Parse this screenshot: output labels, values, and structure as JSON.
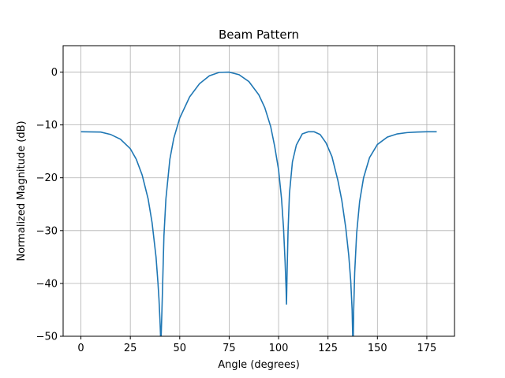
{
  "chart_data": {
    "type": "line",
    "title": "Beam Pattern",
    "xlabel": "Angle (degrees)",
    "ylabel": "Normalized Magnitude (dB)",
    "xlim": [
      -9,
      189
    ],
    "ylim": [
      -50,
      5
    ],
    "x_ticks": [
      0,
      25,
      50,
      75,
      100,
      125,
      150,
      175
    ],
    "y_ticks": [
      0,
      -10,
      -20,
      -30,
      -40,
      -50
    ],
    "x_tick_labels": [
      "0",
      "25",
      "50",
      "75",
      "100",
      "125",
      "150",
      "175"
    ],
    "y_tick_labels": [
      "0",
      "−10",
      "−20",
      "−30",
      "−40",
      "−50"
    ],
    "grid": true,
    "line_color": "#1f77b4",
    "series": [
      {
        "x": [
          0,
          10,
          15,
          20,
          25,
          28,
          31,
          34,
          36,
          38,
          39,
          39.5,
          40,
          40.3,
          40.6,
          41,
          41.5,
          42,
          43,
          45,
          47,
          50,
          55,
          60,
          65,
          70,
          75,
          80,
          85,
          90,
          93,
          96,
          98,
          100,
          101.5,
          102.5,
          103.3,
          103.8,
          104,
          104.3,
          104.8,
          105.5,
          107,
          109,
          112,
          115,
          118,
          121,
          124,
          127,
          130,
          132,
          134,
          135.5,
          136.5,
          137.2,
          137.5,
          137.8,
          138,
          138.5,
          139.5,
          141,
          143,
          146,
          150,
          155,
          160,
          165,
          170,
          175,
          180
        ],
        "y": [
          -11.3,
          -11.35,
          -11.8,
          -12.7,
          -14.5,
          -16.5,
          -19.5,
          -24,
          -28.5,
          -35,
          -40,
          -43,
          -47,
          -50,
          -50,
          -45,
          -38,
          -31,
          -24,
          -16.5,
          -12.5,
          -8.7,
          -4.7,
          -2.2,
          -0.7,
          -0.05,
          0,
          -0.5,
          -1.8,
          -4.3,
          -6.7,
          -10.3,
          -14,
          -18.5,
          -24,
          -29.5,
          -36,
          -41,
          -44,
          -38,
          -30,
          -23,
          -17,
          -13.8,
          -11.7,
          -11.3,
          -11.3,
          -11.8,
          -13.4,
          -16,
          -20.5,
          -24.3,
          -29.5,
          -34.7,
          -39.5,
          -45,
          -50,
          -50,
          -45,
          -38,
          -30.5,
          -24.5,
          -20,
          -16.2,
          -13.7,
          -12.3,
          -11.7,
          -11.45,
          -11.35,
          -11.3,
          -11.3
        ]
      }
    ]
  }
}
